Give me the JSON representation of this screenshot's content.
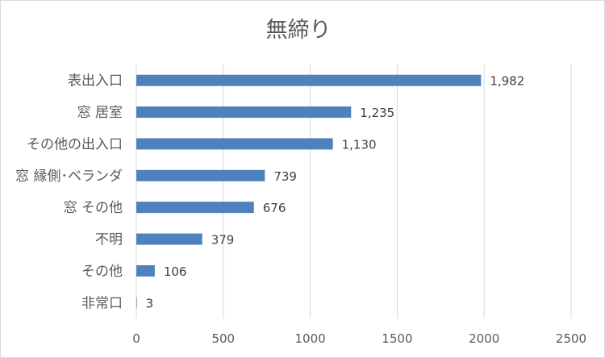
{
  "chart_data": {
    "type": "bar",
    "orientation": "horizontal",
    "title": "無締り",
    "categories": [
      "表出入口",
      "窓 居室",
      "その他の出入口",
      "窓 縁側･ベランダ",
      "窓 その他",
      "不明",
      "その他",
      "非常口"
    ],
    "values": [
      1982,
      1235,
      1130,
      739,
      676,
      379,
      106,
      3
    ],
    "value_labels": [
      "1,982",
      "1,235",
      "1,130",
      "739",
      "676",
      "379",
      "106",
      "3"
    ],
    "xlim": [
      0,
      2500
    ],
    "x_ticks": [
      0,
      500,
      1000,
      1500,
      2000,
      2500
    ],
    "x_tick_labels": [
      "0",
      "500",
      "1000",
      "1500",
      "2000",
      "2500"
    ],
    "grid": "vertical",
    "legend": "none",
    "bar_color": "#4f81bd"
  }
}
